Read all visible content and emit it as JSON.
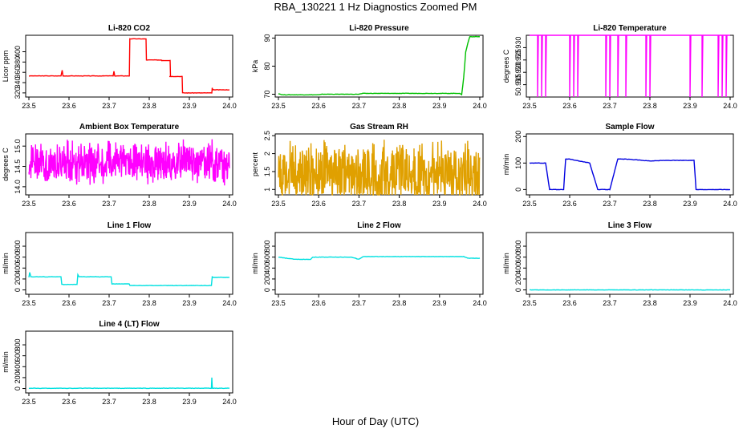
{
  "page": {
    "title": "RBA_130221  1 Hz Diagnostics Zoomed PM",
    "xlabel": "Hour of Day (UTC)"
  },
  "chart_data": [
    {
      "id": "co2",
      "type": "line",
      "title": "Li-820 CO2",
      "ylabel": "Licor ppm",
      "color": "#ff0000",
      "xlim": [
        23.5,
        24.0
      ],
      "ylim": [
        312,
        432
      ],
      "xticks": [
        "23.5",
        "23.6",
        "23.7",
        "23.8",
        "23.9",
        "24.0"
      ],
      "yticks": [
        320,
        340,
        360,
        380,
        400
      ],
      "x": [
        23.5,
        23.58,
        23.583,
        23.585,
        23.59,
        23.71,
        23.712,
        23.714,
        23.715,
        23.7505,
        23.7515,
        23.752,
        23.792,
        23.793,
        23.83,
        23.831,
        23.852,
        23.853,
        23.85,
        23.882,
        23.883,
        23.955,
        23.956,
        23.957,
        23.958,
        23.96,
        23.961,
        24.0
      ],
      "y": [
        353,
        353,
        364,
        353,
        353,
        353,
        362,
        353,
        353,
        353,
        425,
        425,
        425,
        384,
        384,
        383,
        383,
        352,
        352,
        352,
        320,
        320,
        320,
        330,
        326,
        326,
        326,
        326
      ]
    },
    {
      "id": "pressure",
      "type": "line",
      "title": "Li-820 Pressure",
      "ylabel": "kPa",
      "color": "#00c000",
      "xlim": [
        23.5,
        24.0
      ],
      "ylim": [
        69,
        91
      ],
      "xticks": [
        "23.5",
        "23.6",
        "23.7",
        "23.8",
        "23.9",
        "24.0"
      ],
      "yticks": [
        70,
        80,
        90
      ],
      "x": [
        23.5,
        23.51,
        23.6,
        23.61,
        23.7,
        23.71,
        23.95,
        23.955,
        23.96,
        23.965,
        23.97,
        23.975,
        24.0
      ],
      "y": [
        70.2,
        69.8,
        69.8,
        70.0,
        70.0,
        70.3,
        70.3,
        69.8,
        76,
        85,
        88,
        90.5,
        90.5
      ]
    },
    {
      "id": "temperature",
      "type": "line",
      "title": "Li-820 Temperature",
      "ylabel": "degrees C",
      "color": "#ff00ff",
      "xlim": [
        23.5,
        24.0
      ],
      "ylim": [
        50.91,
        50.935
      ],
      "xticks": [
        "23.5",
        "23.6",
        "23.7",
        "23.8",
        "23.9",
        "24.0"
      ],
      "yticks": [
        "50.915",
        "50.920",
        "50.925",
        "50.930"
      ],
      "base": 50.935,
      "dips_x": [
        23.52,
        23.53,
        23.54,
        23.6,
        23.61,
        23.62,
        23.69,
        23.7,
        23.72,
        23.74,
        23.79,
        23.8,
        23.9,
        23.93,
        23.97,
        23.98,
        23.99
      ],
      "dips_y": 50.91
    },
    {
      "id": "ambient",
      "type": "line",
      "title": "Ambient Box Temperature",
      "ylabel": "degrees C",
      "color": "#ff00ff",
      "xlim": [
        23.5,
        24.0
      ],
      "ylim": [
        13.8,
        15.3
      ],
      "xticks": [
        "23.5",
        "23.6",
        "23.7",
        "23.8",
        "23.9",
        "24.0"
      ],
      "yticks": [
        14.0,
        14.5,
        15.0
      ],
      "mean": 14.55,
      "amp": 0.55
    },
    {
      "id": "rh",
      "type": "line",
      "title": "Gas Stream RH",
      "ylabel": "percent",
      "color": "#e0a000",
      "xlim": [
        23.5,
        24.0
      ],
      "ylim": [
        0.85,
        2.55
      ],
      "xticks": [
        "23.5",
        "23.6",
        "23.7",
        "23.8",
        "23.9",
        "24.0"
      ],
      "yticks": [
        1.0,
        1.5,
        2.0,
        2.5
      ],
      "mean": 1.35,
      "amp": 0.9
    },
    {
      "id": "sample",
      "type": "line",
      "title": "Sample Flow",
      "ylabel": "ml/min",
      "color": "#0000e0",
      "xlim": [
        23.5,
        24.0
      ],
      "ylim": [
        -20,
        210
      ],
      "xticks": [
        "23.5",
        "23.6",
        "23.7",
        "23.8",
        "23.9",
        "24.0"
      ],
      "yticks": [
        0,
        100,
        200
      ],
      "x": [
        23.5,
        23.54,
        23.55,
        23.585,
        23.59,
        23.6,
        23.65,
        23.67,
        23.7,
        23.72,
        23.74,
        23.8,
        23.84,
        23.91,
        23.915,
        23.96,
        24.0
      ],
      "y": [
        100,
        100,
        0,
        0,
        115,
        115,
        100,
        0,
        0,
        115,
        115,
        108,
        110,
        110,
        0,
        0,
        0
      ]
    },
    {
      "id": "line1",
      "type": "line",
      "title": "Line 1 Flow",
      "ylabel": "ml/min",
      "color": "#00e0e0",
      "xlim": [
        23.5,
        24.0
      ],
      "ylim": [
        -80,
        1050
      ],
      "xticks": [
        "23.5",
        "23.6",
        "23.7",
        "23.8",
        "23.9",
        "24.0"
      ],
      "yticks": [
        0,
        200,
        400,
        600,
        800
      ],
      "x": [
        23.5,
        23.502,
        23.505,
        23.58,
        23.582,
        23.62,
        23.622,
        23.625,
        23.705,
        23.707,
        23.75,
        23.752,
        23.955,
        23.957,
        23.96,
        24.0
      ],
      "y": [
        230,
        320,
        240,
        240,
        100,
        100,
        280,
        240,
        240,
        110,
        110,
        80,
        80,
        240,
        230,
        230
      ]
    },
    {
      "id": "line2",
      "type": "line",
      "title": "Line 2 Flow",
      "ylabel": "ml/min",
      "color": "#00e0e0",
      "xlim": [
        23.5,
        24.0
      ],
      "ylim": [
        -80,
        1050
      ],
      "xticks": [
        "23.5",
        "23.6",
        "23.7",
        "23.8",
        "23.9",
        "24.0"
      ],
      "yticks": [
        0,
        200,
        400,
        600,
        800
      ],
      "x": [
        23.5,
        23.54,
        23.58,
        23.585,
        23.68,
        23.7,
        23.71,
        23.96,
        23.97,
        24.0
      ],
      "y": [
        600,
        560,
        560,
        600,
        600,
        560,
        610,
        610,
        580,
        580
      ]
    },
    {
      "id": "line3",
      "type": "line",
      "title": "Line 3 Flow",
      "ylabel": "ml/min",
      "color": "#00e0e0",
      "xlim": [
        23.5,
        24.0
      ],
      "ylim": [
        -80,
        1050
      ],
      "xticks": [
        "23.5",
        "23.6",
        "23.7",
        "23.8",
        "23.9",
        "24.0"
      ],
      "yticks": [
        0,
        200,
        400,
        600,
        800
      ],
      "x": [
        23.5,
        24.0
      ],
      "y": [
        0,
        0
      ]
    },
    {
      "id": "line4",
      "type": "line",
      "title": "Line 4 (LT) Flow",
      "ylabel": "ml/min",
      "color": "#00e0e0",
      "xlim": [
        23.5,
        24.0
      ],
      "ylim": [
        -80,
        1050
      ],
      "xticks": [
        "23.5",
        "23.6",
        "23.7",
        "23.8",
        "23.9",
        "24.0"
      ],
      "yticks": [
        0,
        200,
        400,
        600,
        800
      ],
      "x": [
        23.5,
        23.955,
        23.956,
        23.957,
        23.958,
        24.0
      ],
      "y": [
        5,
        5,
        200,
        40,
        5,
        5
      ]
    }
  ]
}
